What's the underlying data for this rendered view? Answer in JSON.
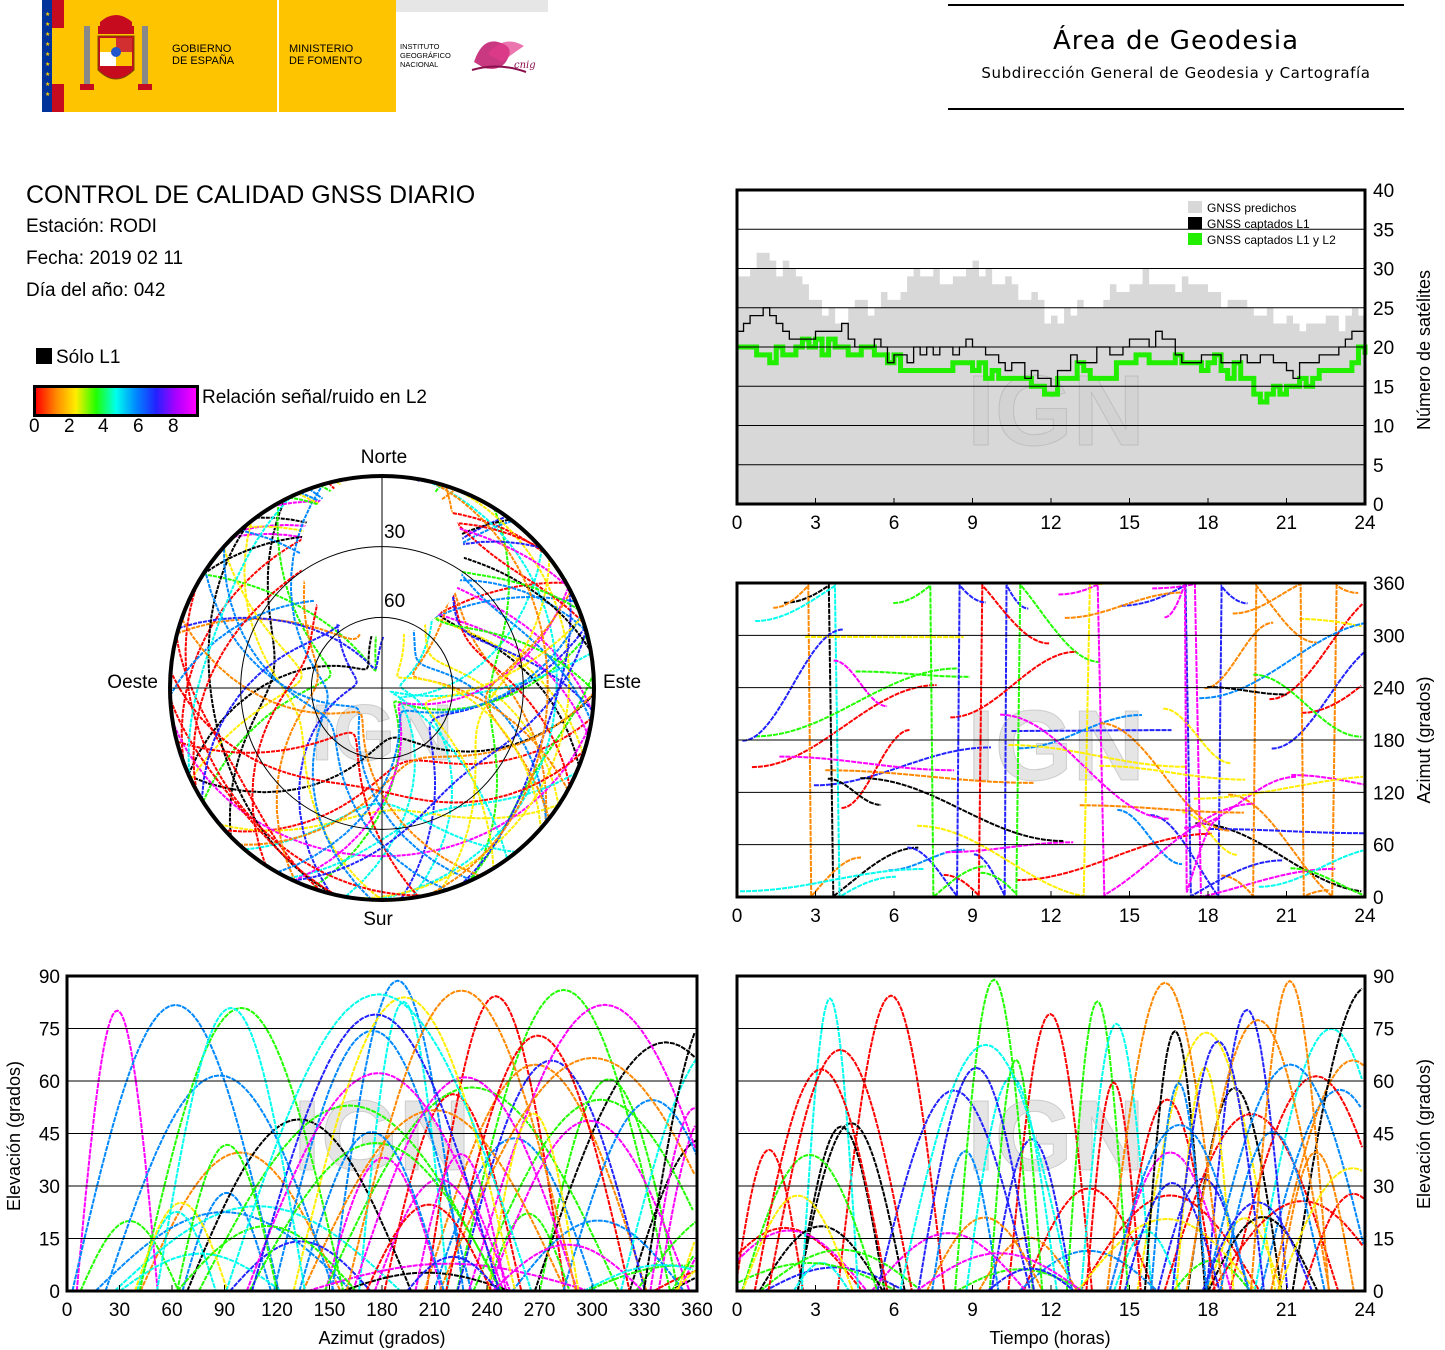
{
  "header": {
    "gov_line1": "GOBIERNO",
    "gov_line2": "DE ESPAÑA",
    "min_line1": "MINISTERIO",
    "min_line2": "DE FOMENTO",
    "ign_line1": "INSTITUTO",
    "ign_line2": "GEOGRÁFICO",
    "ign_line3": "NACIONAL",
    "cnig": "cnig",
    "area_title": "Área de Geodesia",
    "area_subtitle": "Subdirección General de Geodesia y Cartografía",
    "colors": {
      "flag_red": "#c60b1e",
      "flag_yellow": "#ffc400",
      "eu_blue": "#003399",
      "ign_magenta": "#c0166b"
    }
  },
  "info": {
    "title": "CONTROL DE CALIDAD GNSS DIARIO",
    "station": "Estación: RODI",
    "date": "Fecha: 2019 02 11",
    "doy": "Día del año: 042",
    "legend_l1": "Sólo L1",
    "legend_snr": "Relación señal/ruido en L2",
    "snr_ticks": [
      "0",
      "2",
      "4",
      "6",
      "8"
    ]
  },
  "watermark": "IGN",
  "palette": [
    "#ff0000",
    "#ff8800",
    "#ffee00",
    "#22ff00",
    "#00ffee",
    "#0088ff",
    "#2222ff",
    "#ff00ff",
    "#000000"
  ],
  "chart_data": [
    {
      "type": "area",
      "panel": "satellite-count",
      "ylabel": "Número de satélites",
      "xlim": [
        0,
        24
      ],
      "ylim": [
        0,
        40
      ],
      "x_ticks": [
        "0",
        "3",
        "6",
        "9",
        "12",
        "15",
        "18",
        "21",
        "24"
      ],
      "y_ticks": [
        "0",
        "5",
        "10",
        "15",
        "20",
        "25",
        "30",
        "35",
        "40"
      ],
      "legend": [
        "GNSS predichos",
        "GNSS captados L1",
        "GNSS captados L1 y L2"
      ],
      "legend_position": "top-right",
      "grid": "horizontal",
      "series": [
        {
          "name": "GNSS predichos",
          "color": "#d8d8d8",
          "x": [
            0,
            1,
            2,
            3,
            4,
            5,
            6,
            7,
            8,
            9,
            10,
            11,
            12,
            13,
            14,
            15,
            16,
            17,
            18,
            19,
            20,
            21,
            22,
            23,
            24
          ],
          "values": [
            29,
            31,
            29,
            25,
            24,
            25,
            27,
            29,
            29,
            30,
            28,
            26,
            24,
            25,
            26,
            29,
            29,
            28,
            27,
            26,
            24,
            23,
            23,
            23,
            24
          ]
        },
        {
          "name": "GNSS captados L1",
          "color": "#000000",
          "x": [
            0,
            1,
            2,
            3,
            4,
            5,
            6,
            7,
            8,
            9,
            10,
            11,
            12,
            13,
            14,
            15,
            16,
            17,
            18,
            19,
            20,
            21,
            22,
            23,
            24
          ],
          "values": [
            23,
            25,
            21,
            21,
            22,
            20,
            19,
            19,
            19,
            20,
            18,
            17,
            15,
            19,
            19,
            20,
            21,
            19,
            19,
            18,
            19,
            17,
            18,
            20,
            23
          ]
        },
        {
          "name": "GNSS captados L1 y L2",
          "color": "#22ee00",
          "x": [
            0,
            1,
            2,
            3,
            4,
            5,
            6,
            7,
            8,
            9,
            10,
            11,
            12,
            13,
            14,
            15,
            16,
            17,
            18,
            19,
            20,
            21,
            22,
            23,
            24
          ],
          "values": [
            20,
            19,
            20,
            20,
            20,
            19,
            18,
            17,
            17,
            18,
            16,
            16,
            14,
            17,
            16,
            19,
            19,
            18,
            18,
            17,
            14,
            15,
            16,
            17,
            20
          ]
        }
      ]
    },
    {
      "type": "scatter",
      "panel": "azimuth-vs-time",
      "ylabel": "Azimut (grados)",
      "xlim": [
        0,
        24
      ],
      "ylim": [
        0,
        360
      ],
      "x_ticks": [
        "0",
        "3",
        "6",
        "9",
        "12",
        "15",
        "18",
        "21",
        "24"
      ],
      "y_ticks": [
        "0",
        "60",
        "120",
        "180",
        "240",
        "300",
        "360"
      ],
      "grid": "horizontal"
    },
    {
      "type": "scatter",
      "panel": "skyplot",
      "labels": {
        "north": "Norte",
        "south": "Sur",
        "east": "Este",
        "west": "Oeste"
      },
      "rings": [
        "30",
        "60"
      ]
    },
    {
      "type": "scatter",
      "panel": "elevation-vs-azimuth",
      "xlabel": "Azimut (grados)",
      "ylabel": "Elevación (grados)",
      "xlim": [
        0,
        360
      ],
      "ylim": [
        0,
        90
      ],
      "x_ticks": [
        "0",
        "30",
        "60",
        "90",
        "120",
        "150",
        "180",
        "210",
        "240",
        "270",
        "300",
        "330",
        "360"
      ],
      "y_ticks": [
        "0",
        "15",
        "30",
        "45",
        "60",
        "75",
        "90"
      ],
      "grid": "horizontal"
    },
    {
      "type": "scatter",
      "panel": "elevation-vs-time",
      "xlabel": "Tiempo (horas)",
      "ylabel": "Elevación (grados)",
      "xlim": [
        0,
        24
      ],
      "ylim": [
        0,
        90
      ],
      "x_ticks": [
        "0",
        "3",
        "6",
        "9",
        "12",
        "15",
        "18",
        "21",
        "24"
      ],
      "y_ticks": [
        "0",
        "15",
        "30",
        "45",
        "60",
        "75",
        "90"
      ],
      "grid": "horizontal"
    }
  ]
}
